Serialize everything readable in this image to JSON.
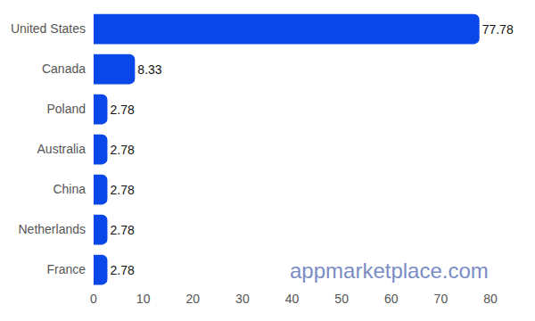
{
  "chart_data": {
    "type": "bar",
    "orientation": "horizontal",
    "categories": [
      "United States",
      "Canada",
      "Poland",
      "Australia",
      "China",
      "Netherlands",
      "France"
    ],
    "values": [
      77.78,
      8.33,
      2.78,
      2.78,
      2.78,
      2.78,
      2.78
    ],
    "color": "#0a47e8",
    "xlim": [
      0,
      80
    ],
    "xticks": [
      0,
      10,
      20,
      30,
      40,
      50,
      60,
      70,
      80
    ],
    "grid": false,
    "data_labels": true,
    "annotations": [
      {
        "text": "appmarketplace.com"
      }
    ]
  }
}
